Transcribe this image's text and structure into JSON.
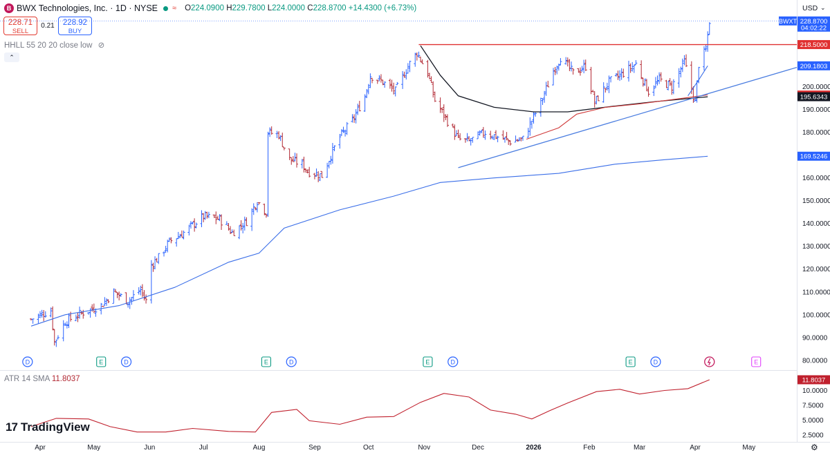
{
  "header": {
    "symbol_name": "BWX Technologies, Inc. · 1D · NYSE",
    "logo_letter": "B",
    "open_label": "O",
    "open": "224.0900",
    "high_label": "H",
    "high": "229.7800",
    "low_label": "L",
    "low": "224.0000",
    "close_label": "C",
    "close": "228.8700",
    "change": "+14.4300 (+6.73%)"
  },
  "trade": {
    "sell_price": "228.71",
    "sell_label": "SELL",
    "spread": "0.21",
    "buy_price": "228.92",
    "buy_label": "BUY"
  },
  "indicator_label": "HHLL 55 20 20 close low",
  "collapse_icon": "chevron-up-icon",
  "atr": {
    "label": "ATR 14 SMA",
    "value": "11.8037"
  },
  "currency": "USD",
  "brand": "TradingView",
  "colors": {
    "up": "#2962ff",
    "down": "#b22833",
    "trend": "#4a7de0",
    "ma_long": "#3a6ee8",
    "ma_mid": "#131722",
    "ma_red": "#d03a3a",
    "resistance": "#e03030",
    "atr": "#c0202d"
  },
  "chart_data": [
    {
      "type": "ohlc",
      "title": "BWX Technologies, Inc. · 1D · NYSE",
      "ylim": [
        76,
        232
      ],
      "y_ticks": [
        "80.0000",
        "90.0000",
        "100.0000",
        "110.0000",
        "120.0000",
        "130.0000",
        "140.0000",
        "150.0000",
        "160.0000",
        "170.0000",
        "180.0000",
        "190.0000",
        "200.0000"
      ],
      "x_ticks": [
        "Apr",
        "May",
        "Jun",
        "Jul",
        "Aug",
        "Sep",
        "Oct",
        "Nov",
        "Dec",
        "2026",
        "Feb",
        "Mar",
        "Apr",
        "May"
      ],
      "x_tick_dates": [
        "2025-04-01",
        "2025-05-01",
        "2025-06-01",
        "2025-07-01",
        "2025-08-01",
        "2025-09-01",
        "2025-10-01",
        "2025-11-01",
        "2025-12-01",
        "2026-01-01",
        "2026-02-01",
        "2026-03-01",
        "2026-04-01",
        "2026-05-01"
      ],
      "price_labels": [
        {
          "name": "BWXT",
          "value": "228.8700",
          "sub": "04:02:22",
          "y": 228.87,
          "bg": "#2962ff"
        },
        {
          "value": "218.5000",
          "y": 218.5,
          "bg": "#e03030"
        },
        {
          "value": "209.1803",
          "y": 209.1803,
          "bg": "#2962ff"
        },
        {
          "value": "196.3640",
          "y": 196.364,
          "bg": "#e03030"
        },
        {
          "value": "195.6343",
          "y": 195.6343,
          "bg": "#131722"
        },
        {
          "value": "169.5246",
          "y": 169.5246,
          "bg": "#2962ff"
        }
      ],
      "series_points": [
        [
          "2025-03-27",
          98
        ],
        [
          "2025-04-07",
          102
        ],
        [
          "2025-04-09",
          88
        ],
        [
          "2025-04-15",
          97
        ],
        [
          "2025-04-25",
          101
        ],
        [
          "2025-05-05",
          104
        ],
        [
          "2025-05-12",
          110
        ],
        [
          "2025-05-20",
          106
        ],
        [
          "2025-05-27",
          111
        ],
        [
          "2025-05-30",
          106
        ],
        [
          "2025-06-02",
          122
        ],
        [
          "2025-06-06",
          125
        ],
        [
          "2025-06-12",
          132
        ],
        [
          "2025-06-20",
          136
        ],
        [
          "2025-06-26",
          140
        ],
        [
          "2025-07-01",
          143
        ],
        [
          "2025-07-10",
          142
        ],
        [
          "2025-07-17",
          136
        ],
        [
          "2025-07-25",
          141
        ],
        [
          "2025-07-31",
          150
        ],
        [
          "2025-08-05",
          145
        ],
        [
          "2025-08-06",
          180
        ],
        [
          "2025-08-12",
          179
        ],
        [
          "2025-08-18",
          168
        ],
        [
          "2025-08-25",
          166
        ],
        [
          "2025-08-28",
          163
        ],
        [
          "2025-09-05",
          161
        ],
        [
          "2025-09-10",
          170
        ],
        [
          "2025-09-15",
          178
        ],
        [
          "2025-09-22",
          185
        ],
        [
          "2025-09-29",
          196
        ],
        [
          "2025-10-02",
          205
        ],
        [
          "2025-10-09",
          202
        ],
        [
          "2025-10-16",
          198
        ],
        [
          "2025-10-23",
          209
        ],
        [
          "2025-10-28",
          215
        ],
        [
          "2025-11-03",
          206
        ],
        [
          "2025-11-07",
          194
        ],
        [
          "2025-11-14",
          185
        ],
        [
          "2025-11-20",
          177
        ],
        [
          "2025-11-26",
          176
        ],
        [
          "2025-12-05",
          180
        ],
        [
          "2025-12-12",
          178
        ],
        [
          "2025-12-19",
          176
        ],
        [
          "2025-12-26",
          177
        ],
        [
          "2026-01-06",
          195
        ],
        [
          "2026-01-12",
          207
        ],
        [
          "2026-01-16",
          213
        ],
        [
          "2026-01-23",
          206
        ],
        [
          "2026-01-30",
          209
        ],
        [
          "2026-02-04",
          193
        ],
        [
          "2026-02-12",
          202
        ],
        [
          "2026-02-20",
          206
        ],
        [
          "2026-02-27",
          210
        ],
        [
          "2026-03-06",
          198
        ],
        [
          "2026-03-12",
          203
        ],
        [
          "2026-03-19",
          200
        ],
        [
          "2026-03-26",
          211
        ],
        [
          "2026-04-01",
          193
        ],
        [
          "2026-04-03",
          210
        ],
        [
          "2026-04-07",
          216
        ],
        [
          "2026-04-09",
          229
        ]
      ],
      "overlays": [
        {
          "name": "long-ma",
          "color": "#3a6ee8",
          "points": [
            [
              "2025-03-27",
              95
            ],
            [
              "2025-04-15",
              100
            ],
            [
              "2025-05-15",
              104
            ],
            [
              "2025-06-15",
              112
            ],
            [
              "2025-07-15",
              123
            ],
            [
              "2025-08-01",
              127
            ],
            [
              "2025-08-15",
              138
            ],
            [
              "2025-09-15",
              146
            ],
            [
              "2025-10-15",
              152
            ],
            [
              "2025-11-10",
              158
            ],
            [
              "2025-12-10",
              160
            ],
            [
              "2026-01-15",
              162
            ],
            [
              "2026-02-15",
              166
            ],
            [
              "2026-03-15",
              168
            ],
            [
              "2026-04-08",
              169.5
            ]
          ]
        },
        {
          "name": "mid-ma",
          "color": "#131722",
          "points": [
            [
              "2025-10-30",
              218
            ],
            [
              "2025-11-10",
              205
            ],
            [
              "2025-11-20",
              196
            ],
            [
              "2025-12-10",
              191
            ],
            [
              "2026-01-01",
              189
            ],
            [
              "2026-01-20",
              189
            ],
            [
              "2026-02-15",
              191.5
            ],
            [
              "2026-03-10",
              193.5
            ],
            [
              "2026-04-08",
              195.6
            ]
          ]
        },
        {
          "name": "red-ma",
          "color": "#d03a3a",
          "points": [
            [
              "2025-12-28",
              177
            ],
            [
              "2026-01-15",
              182
            ],
            [
              "2026-01-25",
              188
            ],
            [
              "2026-02-10",
              191
            ],
            [
              "2026-03-01",
              192.5
            ],
            [
              "2026-04-08",
              196.4
            ]
          ]
        },
        {
          "name": "short-ma",
          "color": "#3a6ee8",
          "points": [
            [
              "2026-03-28",
              196
            ],
            [
              "2026-04-03",
              203
            ],
            [
              "2026-04-08",
              209.2
            ]
          ]
        }
      ],
      "trendlines": [
        {
          "name": "resistance",
          "color": "#e03030",
          "from": [
            "2025-10-29",
            218.5
          ],
          "to": [
            "2026-05-29",
            218.5
          ]
        },
        {
          "name": "rising-support",
          "color": "#4a7de0",
          "from": [
            "2025-11-20",
            164.5
          ],
          "to": [
            "2026-05-29",
            208.5
          ]
        }
      ],
      "events": [
        {
          "label": "D",
          "kind": "dividend",
          "date": "2025-03-25"
        },
        {
          "label": "E",
          "kind": "earnings",
          "date": "2025-05-05"
        },
        {
          "label": "D",
          "kind": "dividend",
          "date": "2025-05-19"
        },
        {
          "label": "E",
          "kind": "earnings",
          "date": "2025-08-05"
        },
        {
          "label": "D",
          "kind": "dividend",
          "date": "2025-08-19"
        },
        {
          "label": "E",
          "kind": "earnings",
          "date": "2025-11-03"
        },
        {
          "label": "D",
          "kind": "dividend",
          "date": "2025-11-17"
        },
        {
          "label": "E",
          "kind": "earnings",
          "date": "2026-02-24"
        },
        {
          "label": "D",
          "kind": "dividend",
          "date": "2026-03-10"
        },
        {
          "label": "",
          "kind": "flash",
          "date": "2026-04-09"
        },
        {
          "label": "E",
          "kind": "earnings-future",
          "date": "2026-05-05"
        }
      ]
    },
    {
      "type": "line",
      "title": "ATR 14 SMA",
      "ylim": [
        1.8,
        13.2
      ],
      "y_ticks": [
        "10.0000",
        "7.5000",
        "5.0000",
        "2.5000"
      ],
      "current": "11.8037",
      "series": [
        {
          "name": "ATR 14 SMA",
          "points": [
            [
              "2025-03-27",
              3.9
            ],
            [
              "2025-04-10",
              5.3
            ],
            [
              "2025-04-28",
              5.2
            ],
            [
              "2025-05-10",
              3.9
            ],
            [
              "2025-05-25",
              3.0
            ],
            [
              "2025-06-10",
              3.0
            ],
            [
              "2025-06-25",
              3.6
            ],
            [
              "2025-07-15",
              3.1
            ],
            [
              "2025-07-30",
              3.0
            ],
            [
              "2025-08-08",
              6.3
            ],
            [
              "2025-08-22",
              6.8
            ],
            [
              "2025-08-29",
              4.9
            ],
            [
              "2025-09-15",
              4.3
            ],
            [
              "2025-09-30",
              5.5
            ],
            [
              "2025-10-15",
              5.6
            ],
            [
              "2025-10-30",
              8.0
            ],
            [
              "2025-11-12",
              9.5
            ],
            [
              "2025-11-26",
              8.9
            ],
            [
              "2025-12-08",
              6.7
            ],
            [
              "2025-12-22",
              6.0
            ],
            [
              "2025-12-31",
              5.2
            ],
            [
              "2026-01-10",
              6.6
            ],
            [
              "2026-01-20",
              7.9
            ],
            [
              "2026-02-05",
              9.8
            ],
            [
              "2026-02-18",
              10.2
            ],
            [
              "2026-03-01",
              9.4
            ],
            [
              "2026-03-15",
              10.0
            ],
            [
              "2026-03-28",
              10.3
            ],
            [
              "2026-04-09",
              11.8
            ]
          ]
        }
      ]
    }
  ]
}
